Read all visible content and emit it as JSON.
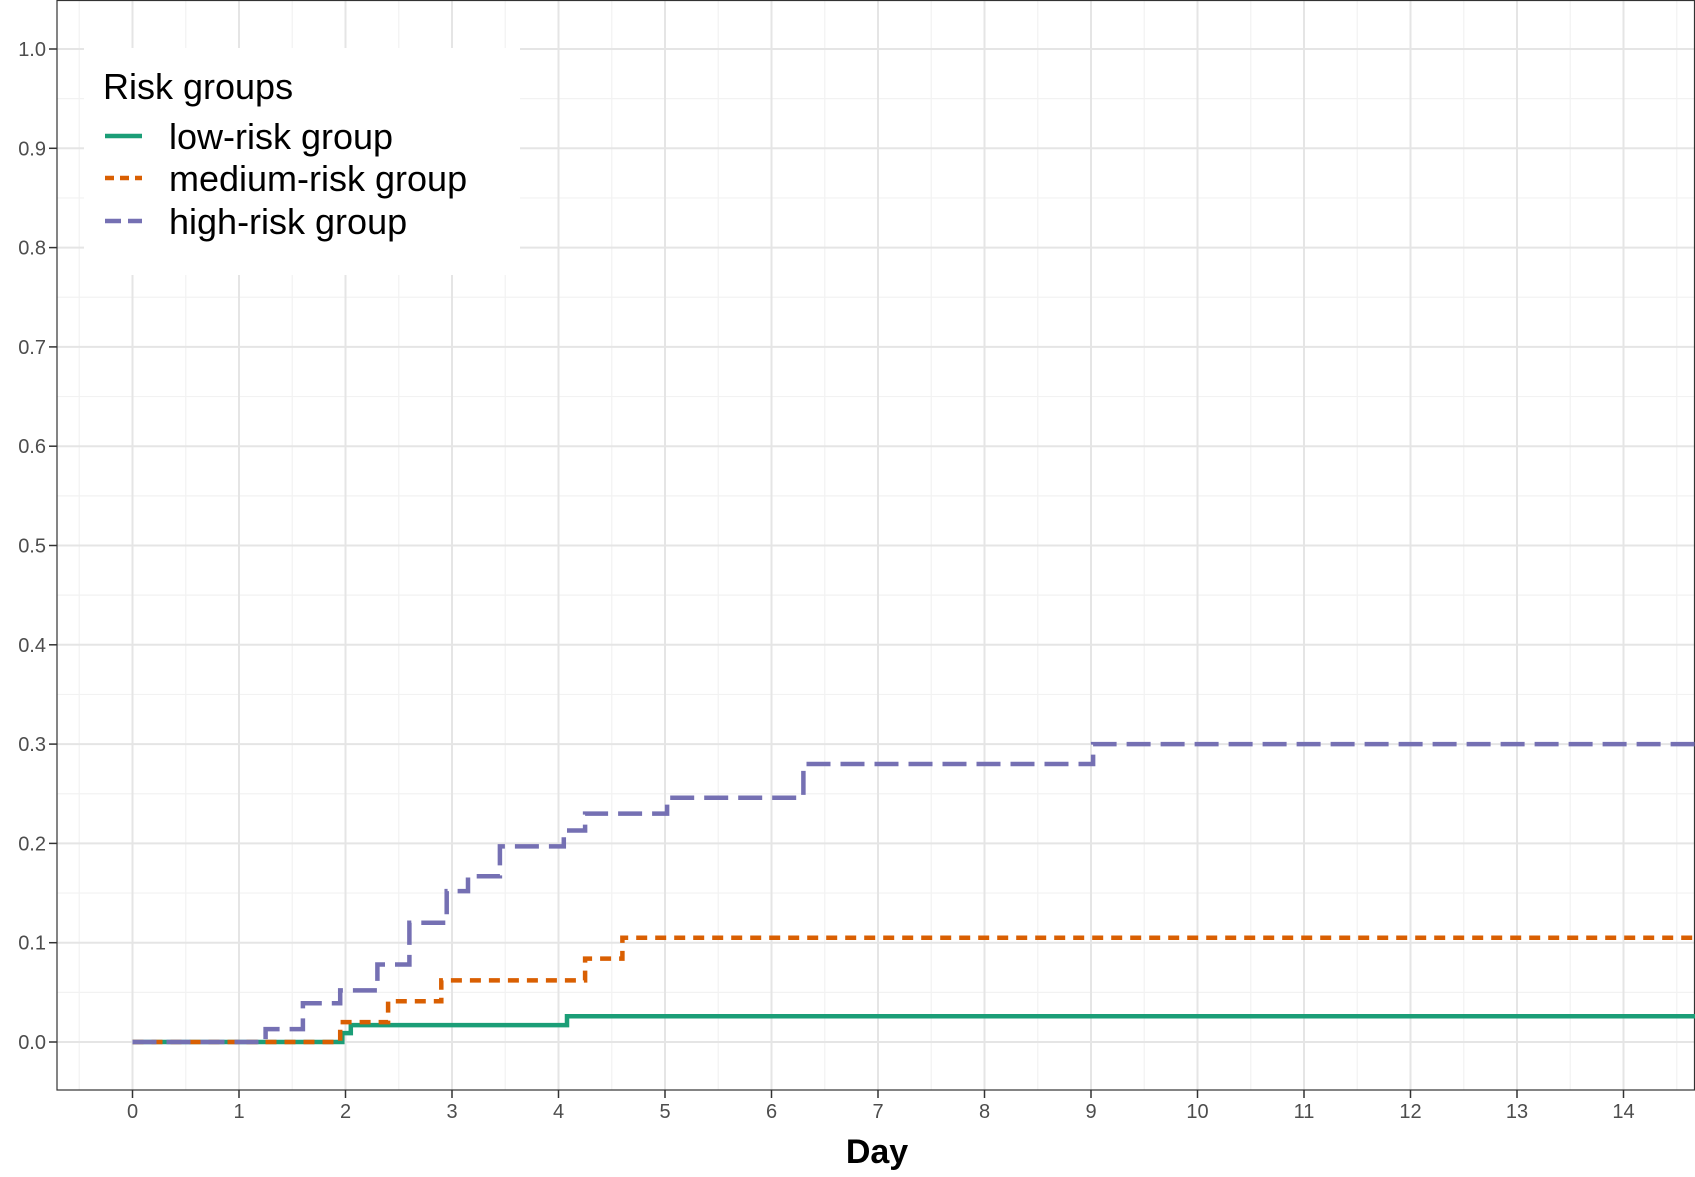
{
  "chart_data": {
    "type": "line",
    "step": true,
    "xlabel": "Day",
    "ylabel": "",
    "xlim": [
      -0.7,
      14.8
    ],
    "ylim": [
      -0.05,
      1.05
    ],
    "x_ticks": [
      0,
      1,
      2,
      3,
      4,
      5,
      6,
      7,
      8,
      9,
      10,
      11,
      12,
      13,
      14
    ],
    "y_ticks": [
      0.0,
      0.1,
      0.2,
      0.3,
      0.4,
      0.5,
      0.6,
      0.7,
      0.8,
      0.9,
      1.0
    ],
    "y_tick_labels": [
      "0.0",
      "0.1",
      "0.2",
      "0.3",
      "0.4",
      "0.5",
      "0.6",
      "0.7",
      "0.8",
      "0.9",
      "1.0"
    ],
    "grid": true,
    "legend": {
      "title": "Risk groups",
      "position": "top-left"
    },
    "series": [
      {
        "name": "low-risk group",
        "color": "#1b9e77",
        "dash": "solid",
        "x": [
          0,
          1.97,
          2.05,
          4.08,
          14.8
        ],
        "y": [
          0.0,
          0.009,
          0.017,
          0.026,
          0.026
        ]
      },
      {
        "name": "medium-risk group",
        "color": "#d95f02",
        "dash": "dashed",
        "x": [
          0,
          1.95,
          2.4,
          2.9,
          4.25,
          4.6,
          14.8
        ],
        "y": [
          0.0,
          0.02,
          0.041,
          0.062,
          0.084,
          0.105,
          0.105
        ]
      },
      {
        "name": "high-risk group",
        "color": "#7570b3",
        "dash": "longdash",
        "x": [
          0,
          1.25,
          1.6,
          1.95,
          2.3,
          2.6,
          2.95,
          3.15,
          3.45,
          4.05,
          4.25,
          5.02,
          6.3,
          9.02,
          14.8
        ],
        "y": [
          0.0,
          0.013,
          0.039,
          0.052,
          0.078,
          0.12,
          0.152,
          0.167,
          0.197,
          0.213,
          0.23,
          0.246,
          0.28,
          0.3,
          0.325
        ]
      }
    ]
  }
}
